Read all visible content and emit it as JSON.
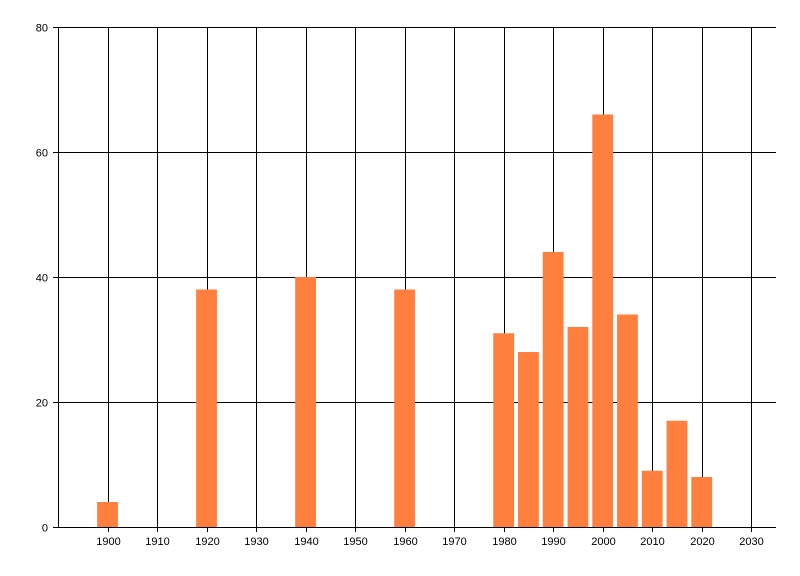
{
  "chart_data": {
    "type": "bar",
    "title": "",
    "xlabel": "",
    "ylabel": "",
    "x": [
      1900,
      1920,
      1940,
      1960,
      1980,
      1985,
      1990,
      1995,
      2000,
      2005,
      2010,
      2015,
      2020
    ],
    "values": [
      4,
      38,
      40,
      38,
      31,
      28,
      44,
      32,
      66,
      34,
      9,
      17,
      8
    ],
    "xlim": [
      1890,
      2035
    ],
    "ylim": [
      0,
      80
    ],
    "x_ticks": [
      1900,
      1910,
      1920,
      1930,
      1940,
      1950,
      1960,
      1970,
      1980,
      1990,
      2000,
      2010,
      2020,
      2030
    ],
    "y_ticks": [
      0,
      20,
      40,
      60,
      80
    ],
    "bar_color": "#ff7f3f",
    "grid": true,
    "grid_color": "#000000",
    "legend": "none"
  }
}
